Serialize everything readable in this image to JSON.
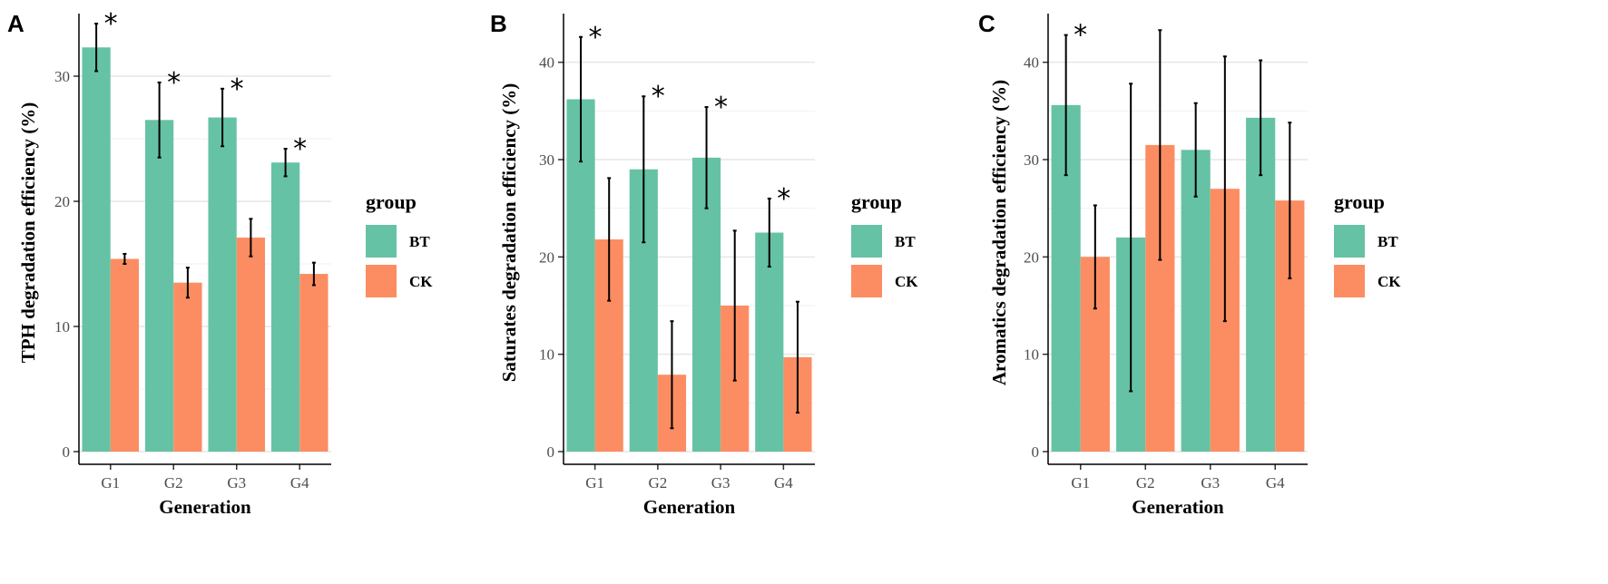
{
  "chart_data": [
    {
      "panel": "A",
      "type": "bar",
      "categories": [
        "G1",
        "G2",
        "G3",
        "G4"
      ],
      "xlabel": "Generation",
      "ylabel": "TPH degradation efficiency (%)",
      "ylim": [
        0,
        35
      ],
      "yticks": [
        0,
        10,
        20,
        30
      ],
      "grid": true,
      "legend_title": "group",
      "legend_position": "right",
      "series": [
        {
          "name": "BT",
          "color": "#66c2a5",
          "values": [
            32.3,
            26.5,
            26.7,
            23.1
          ],
          "errors": [
            1.9,
            3.0,
            2.3,
            1.1
          ],
          "significant": [
            true,
            true,
            true,
            true
          ]
        },
        {
          "name": "CK",
          "color": "#fc8d62",
          "values": [
            15.4,
            13.5,
            17.1,
            14.2
          ],
          "errors": [
            0.4,
            1.2,
            1.5,
            0.9
          ],
          "significant": [
            false,
            false,
            false,
            false
          ]
        }
      ],
      "annotation": "*"
    },
    {
      "panel": "B",
      "type": "bar",
      "categories": [
        "G1",
        "G2",
        "G3",
        "G4"
      ],
      "xlabel": "Generation",
      "ylabel": "Saturates degradation efficiency (%)",
      "ylim": [
        0,
        45
      ],
      "yticks": [
        0,
        10,
        20,
        30,
        40
      ],
      "grid": true,
      "legend_title": "group",
      "legend_position": "right",
      "series": [
        {
          "name": "BT",
          "color": "#66c2a5",
          "values": [
            36.2,
            29.0,
            30.2,
            22.5
          ],
          "errors": [
            6.4,
            7.5,
            5.2,
            3.5
          ],
          "significant": [
            true,
            true,
            true,
            true
          ]
        },
        {
          "name": "CK",
          "color": "#fc8d62",
          "values": [
            21.8,
            7.9,
            15.0,
            9.7
          ],
          "errors": [
            6.3,
            5.5,
            7.7,
            5.7
          ],
          "significant": [
            false,
            false,
            false,
            false
          ]
        }
      ],
      "annotation": "*"
    },
    {
      "panel": "C",
      "type": "bar",
      "categories": [
        "G1",
        "G2",
        "G3",
        "G4"
      ],
      "xlabel": "Generation",
      "ylabel": "Aromatics degradation efficiency (%)",
      "ylim": [
        0,
        45
      ],
      "yticks": [
        0,
        10,
        20,
        30,
        40
      ],
      "grid": true,
      "legend_title": "group",
      "legend_position": "right",
      "series": [
        {
          "name": "BT",
          "color": "#66c2a5",
          "values": [
            35.6,
            22.0,
            31.0,
            34.3
          ],
          "errors": [
            7.2,
            15.8,
            4.8,
            5.9
          ],
          "significant": [
            true,
            false,
            false,
            false
          ]
        },
        {
          "name": "CK",
          "color": "#fc8d62",
          "values": [
            20.0,
            31.5,
            27.0,
            25.8
          ],
          "errors": [
            5.3,
            11.8,
            13.6,
            8.0
          ],
          "significant": [
            false,
            false,
            false,
            false
          ]
        }
      ],
      "annotation": "*"
    }
  ]
}
